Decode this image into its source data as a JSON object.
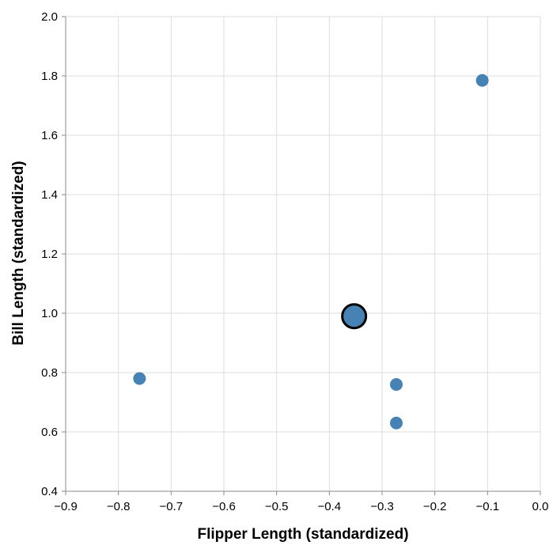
{
  "chart_data": {
    "type": "scatter",
    "xlabel": "Flipper Length (standardized)",
    "ylabel": "Bill Length (standardized)",
    "xlim": [
      -0.9,
      0.0
    ],
    "ylim": [
      0.4,
      2.0
    ],
    "x_ticks": [
      "−0.9",
      "−0.8",
      "−0.7",
      "−0.6",
      "−0.5",
      "−0.4",
      "−0.3",
      "−0.2",
      "−0.1",
      "0.0"
    ],
    "y_ticks": [
      "0.4",
      "0.6",
      "0.8",
      "1.0",
      "1.2",
      "1.4",
      "1.6",
      "1.8",
      "2.0"
    ],
    "grid": true,
    "point_color": "#4682b4",
    "points": [
      {
        "x": -0.11,
        "y": 1.785
      },
      {
        "x": -0.76,
        "y": 0.78
      },
      {
        "x": -0.273,
        "y": 0.76
      },
      {
        "x": -0.273,
        "y": 0.63
      },
      {
        "x": -0.353,
        "y": 0.99,
        "highlighted": true
      }
    ]
  }
}
